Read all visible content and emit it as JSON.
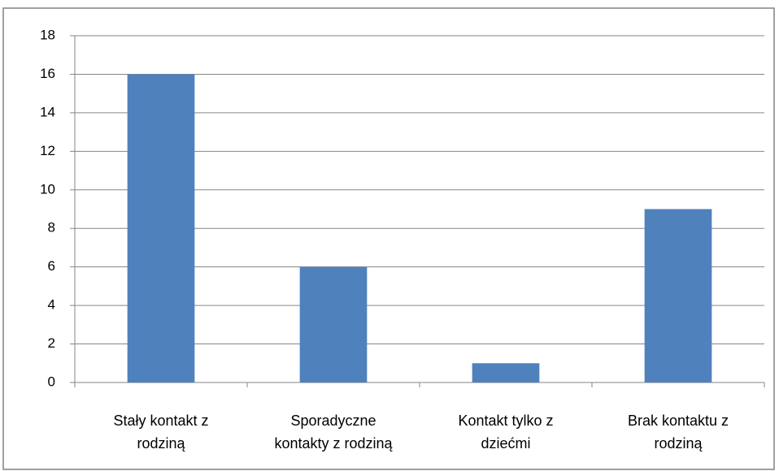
{
  "chart_data": {
    "type": "bar",
    "categories": [
      "Stały kontakt z rodziną",
      "Sporadyczne kontakty z rodziną",
      "Kontakt tylko z dziećmi",
      "Brak kontaktu z rodziną"
    ],
    "values": [
      16,
      6,
      1,
      9
    ],
    "color": "#4f81bd",
    "ylim": [
      0,
      18
    ],
    "yticks": [
      0,
      2,
      4,
      6,
      8,
      10,
      12,
      14,
      16,
      18
    ],
    "grid": true
  }
}
